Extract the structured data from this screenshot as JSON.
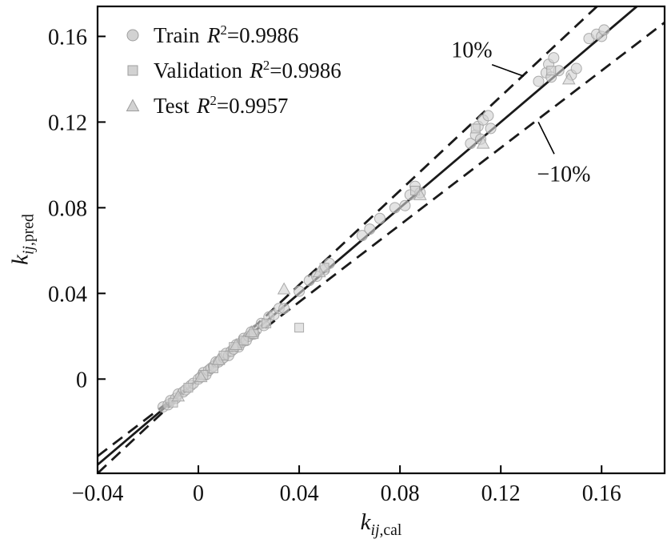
{
  "chart_data": {
    "type": "scatter",
    "title": "",
    "xlabel": {
      "base": "k",
      "sub_italic": "ij",
      "sub_roman": ",cal"
    },
    "ylabel": {
      "base": "k",
      "sub_italic": "ij",
      "sub_roman": ",pred"
    },
    "xlim": [
      -0.04,
      0.185
    ],
    "ylim": [
      -0.044,
      0.174
    ],
    "grid": false,
    "legend_position": "upper-left-inside",
    "x_ticks": {
      "values": [
        -0.04,
        0,
        0.04,
        0.08,
        0.12,
        0.16
      ],
      "labels": [
        "−0.04",
        "0",
        "0.04",
        "0.08",
        "0.12",
        "0.16"
      ]
    },
    "y_ticks": {
      "values": [
        0,
        0.04,
        0.08,
        0.12,
        0.16
      ],
      "labels": [
        "0",
        "0.04",
        "0.08",
        "0.12",
        "0.16"
      ]
    },
    "reference_lines": [
      {
        "name": "parity-line",
        "slope": 1.0,
        "style": "solid"
      },
      {
        "name": "plus-10-percent-line",
        "slope": 1.1,
        "style": "dashed"
      },
      {
        "name": "minus-10-percent-line",
        "slope": 0.9,
        "style": "dashed"
      }
    ],
    "annotations": [
      {
        "text": "10%",
        "x": 0.1085,
        "y": 0.1537,
        "leader": [
          [
            0.1165,
            0.1468
          ],
          [
            0.1291,
            0.1414
          ]
        ]
      },
      {
        "text": "−10%",
        "x": 0.145,
        "y": 0.0956,
        "leader": [
          [
            0.1412,
            0.1051
          ],
          [
            0.1349,
            0.12
          ]
        ]
      }
    ],
    "legend": {
      "items": [
        {
          "marker": "circle",
          "label": "Train",
          "r_label": "R",
          "r_sup": "2",
          "r2_value": "=0.9986"
        },
        {
          "marker": "square",
          "label": "Validation",
          "r_label": "R",
          "r_sup": "2",
          "r2_value": "=0.9986"
        },
        {
          "marker": "triangle",
          "label": "Test",
          "r_label": "R",
          "r_sup": "2",
          "r2_value": "=0.9957"
        }
      ]
    },
    "colors": {
      "marker_fill": "#d2d2d2",
      "marker_edge": "#9e9e9e",
      "line": "#1a1a1a",
      "text": "#111111"
    },
    "series": [
      {
        "name": "Train",
        "marker": "circle",
        "r2": 0.9986,
        "points": [
          [
            -0.014,
            -0.013
          ],
          [
            -0.012,
            -0.012
          ],
          [
            -0.011,
            -0.01
          ],
          [
            -0.009,
            -0.009
          ],
          [
            -0.008,
            -0.007
          ],
          [
            -0.006,
            -0.006
          ],
          [
            -0.005,
            -0.005
          ],
          [
            -0.003,
            -0.003
          ],
          [
            -0.002,
            -0.002
          ],
          [
            0.0,
            0.0
          ],
          [
            0.001,
            0.001
          ],
          [
            0.002,
            0.003
          ],
          [
            0.003,
            0.002
          ],
          [
            0.004,
            0.004
          ],
          [
            0.005,
            0.005
          ],
          [
            0.006,
            0.006
          ],
          [
            0.007,
            0.008
          ],
          [
            0.008,
            0.008
          ],
          [
            0.009,
            0.009
          ],
          [
            0.01,
            0.01
          ],
          [
            0.011,
            0.012
          ],
          [
            0.012,
            0.011
          ],
          [
            0.013,
            0.013
          ],
          [
            0.014,
            0.014
          ],
          [
            0.015,
            0.016
          ],
          [
            0.016,
            0.015
          ],
          [
            0.017,
            0.017
          ],
          [
            0.018,
            0.019
          ],
          [
            0.019,
            0.018
          ],
          [
            0.02,
            0.02
          ],
          [
            0.021,
            0.022
          ],
          [
            0.022,
            0.021
          ],
          [
            0.023,
            0.023
          ],
          [
            0.025,
            0.026
          ],
          [
            0.026,
            0.025
          ],
          [
            0.028,
            0.029
          ],
          [
            0.03,
            0.03
          ],
          [
            0.032,
            0.033
          ],
          [
            0.034,
            0.033
          ],
          [
            0.04,
            0.041
          ],
          [
            0.044,
            0.046
          ],
          [
            0.047,
            0.048
          ],
          [
            0.05,
            0.051
          ],
          [
            0.052,
            0.054
          ],
          [
            0.065,
            0.067
          ],
          [
            0.068,
            0.07
          ],
          [
            0.072,
            0.075
          ],
          [
            0.078,
            0.08
          ],
          [
            0.082,
            0.081
          ],
          [
            0.084,
            0.086
          ],
          [
            0.086,
            0.09
          ],
          [
            0.088,
            0.087
          ],
          [
            0.108,
            0.11
          ],
          [
            0.11,
            0.114
          ],
          [
            0.111,
            0.118
          ],
          [
            0.112,
            0.112
          ],
          [
            0.113,
            0.121
          ],
          [
            0.115,
            0.123
          ],
          [
            0.116,
            0.117
          ],
          [
            0.135,
            0.139
          ],
          [
            0.138,
            0.143
          ],
          [
            0.139,
            0.147
          ],
          [
            0.14,
            0.141
          ],
          [
            0.141,
            0.15
          ],
          [
            0.143,
            0.144
          ],
          [
            0.148,
            0.142
          ],
          [
            0.15,
            0.145
          ],
          [
            0.155,
            0.159
          ],
          [
            0.158,
            0.161
          ],
          [
            0.16,
            0.16
          ],
          [
            0.161,
            0.163
          ]
        ]
      },
      {
        "name": "Validation",
        "marker": "square",
        "r2": 0.9986,
        "points": [
          [
            -0.01,
            -0.011
          ],
          [
            -0.004,
            -0.004
          ],
          [
            0.002,
            0.002
          ],
          [
            0.006,
            0.005
          ],
          [
            0.01,
            0.011
          ],
          [
            0.014,
            0.015
          ],
          [
            0.018,
            0.018
          ],
          [
            0.022,
            0.021
          ],
          [
            0.027,
            0.026
          ],
          [
            0.04,
            0.024
          ],
          [
            0.05,
            0.052
          ],
          [
            0.086,
            0.088
          ],
          [
            0.11,
            0.117
          ],
          [
            0.14,
            0.144
          ]
        ]
      },
      {
        "name": "Test",
        "marker": "triangle",
        "r2": 0.9957,
        "points": [
          [
            -0.008,
            -0.008
          ],
          [
            0.001,
            0.001
          ],
          [
            0.008,
            0.009
          ],
          [
            0.015,
            0.016
          ],
          [
            0.021,
            0.022
          ],
          [
            0.034,
            0.042
          ],
          [
            0.048,
            0.05
          ],
          [
            0.088,
            0.086
          ],
          [
            0.113,
            0.11
          ],
          [
            0.147,
            0.14
          ]
        ]
      }
    ]
  }
}
